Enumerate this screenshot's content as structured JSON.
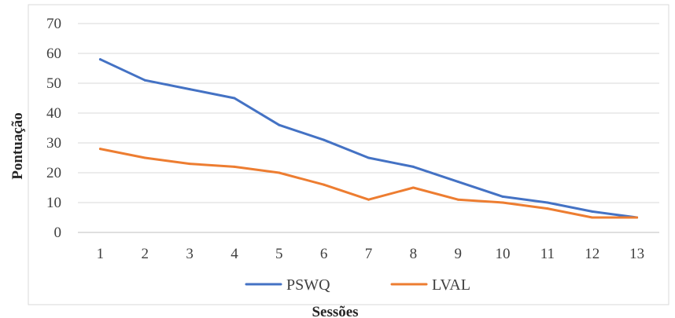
{
  "chart_data": {
    "type": "line",
    "title": "",
    "xlabel": "Sessões",
    "ylabel": "Pontuação",
    "categories": [
      "1",
      "2",
      "3",
      "4",
      "5",
      "6",
      "7",
      "8",
      "9",
      "10",
      "11",
      "12",
      "13"
    ],
    "ylim": [
      0,
      70
    ],
    "yticks": [
      "0",
      "10",
      "20",
      "30",
      "40",
      "50",
      "60",
      "70"
    ],
    "grid": "horizontal",
    "legend_position": "bottom",
    "series": [
      {
        "name": "PSWQ",
        "color": "#4472C4",
        "values": [
          58,
          51,
          48,
          45,
          36,
          31,
          25,
          22,
          17,
          12,
          10,
          7,
          5
        ]
      },
      {
        "name": "LVAL",
        "color": "#ED7D31",
        "values": [
          28,
          25,
          23,
          22,
          20,
          16,
          11,
          15,
          11,
          10,
          8,
          5,
          5
        ]
      }
    ]
  }
}
